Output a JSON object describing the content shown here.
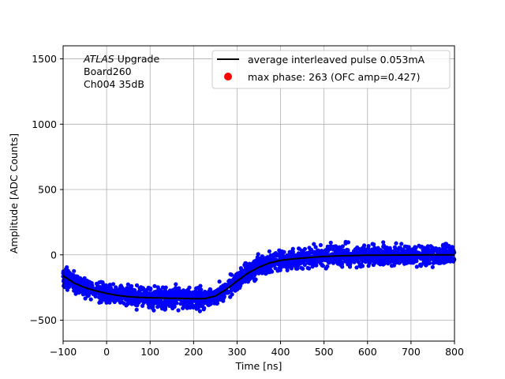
{
  "chart_data": {
    "type": "scatter",
    "annotation": {
      "lines": [
        {
          "italic": "ATLAS",
          "text": " Upgrade"
        },
        {
          "text": " Board260"
        },
        {
          "text": " Ch004 35dB"
        }
      ]
    },
    "xlabel": "Time [ns]",
    "ylabel": "Amplitude [ADC Counts]",
    "xlim": [
      -100,
      800
    ],
    "ylim": [
      -660,
      1600
    ],
    "x_ticks": [
      -100,
      0,
      100,
      200,
      300,
      400,
      500,
      600,
      700,
      800
    ],
    "y_ticks": [
      -500,
      0,
      500,
      1000,
      1500
    ],
    "grid": true,
    "legend_position": "upper right",
    "legend": [
      {
        "label": "average interleaved pulse 0.053mA",
        "marker": "line",
        "color": "#000000"
      },
      {
        "label": "max phase: 263 (OFC amp=0.427)",
        "marker": "dot",
        "color": "#ff0000"
      }
    ],
    "series": [
      {
        "kind": "scatter",
        "color": "#0000ff",
        "spread": 60,
        "x_range": [
          -100,
          800
        ]
      },
      {
        "kind": "line",
        "name": "average interleaved pulse 0.053mA",
        "color": "#000000",
        "x": [
          -100,
          -75,
          -50,
          -25,
          0,
          25,
          50,
          75,
          100,
          125,
          150,
          175,
          200,
          225,
          250,
          275,
          300,
          325,
          350,
          375,
          400,
          425,
          450,
          475,
          500,
          550,
          600,
          650,
          700,
          750,
          800
        ],
        "y": [
          -160,
          -215,
          -250,
          -275,
          -295,
          -310,
          -320,
          -325,
          -328,
          -330,
          -332,
          -333,
          -335,
          -335,
          -315,
          -265,
          -200,
          -140,
          -95,
          -62,
          -42,
          -32,
          -25,
          -18,
          -12,
          -6,
          -3,
          -2,
          -1,
          0,
          0
        ]
      }
    ]
  }
}
